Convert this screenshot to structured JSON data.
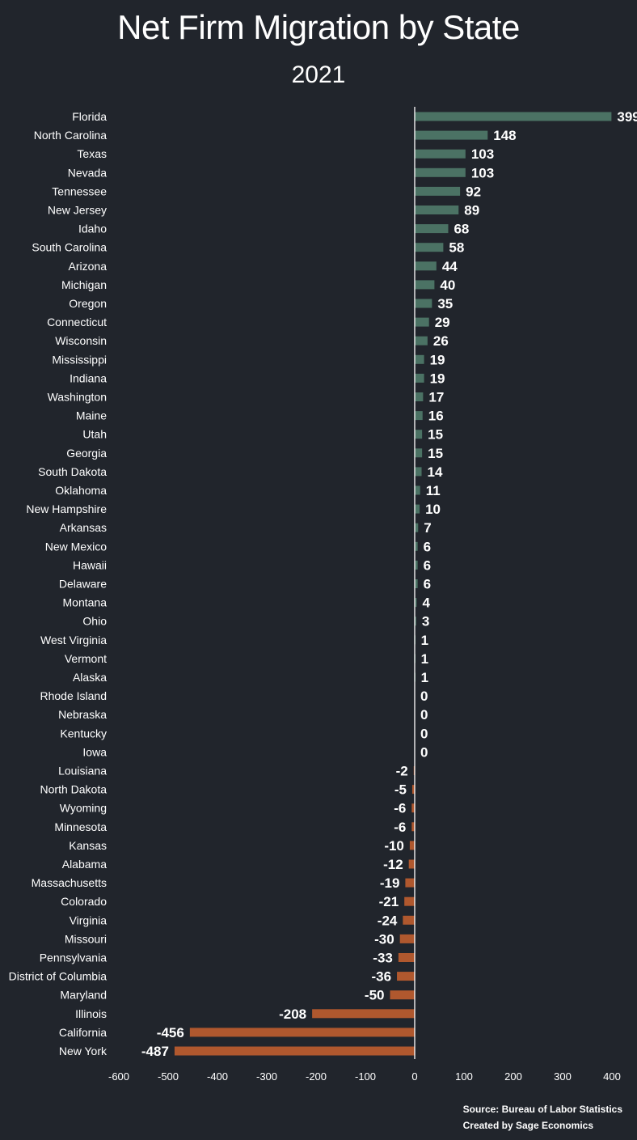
{
  "title": "Net Firm Migration by State",
  "subtitle": "2021",
  "source": "Source: Bureau of Labor Statistics",
  "credit": "Created by Sage Economics",
  "colors": {
    "background": "#21252c",
    "positive": "#4b7264",
    "negative": "#b0582e",
    "axis": "#ffffff",
    "text": "#ffffff"
  },
  "chart_data": {
    "type": "bar",
    "orientation": "horizontal",
    "title": "Net Firm Migration by State",
    "subtitle": "2021",
    "xlim": [
      -600,
      400
    ],
    "xticks": [
      -600,
      -500,
      -400,
      -300,
      -200,
      -100,
      0,
      100,
      200,
      300,
      400
    ],
    "categories": [
      "Florida",
      "North Carolina",
      "Texas",
      "Nevada",
      "Tennessee",
      "New Jersey",
      "Idaho",
      "South Carolina",
      "Arizona",
      "Michigan",
      "Oregon",
      "Connecticut",
      "Wisconsin",
      "Mississippi",
      "Indiana",
      "Washington",
      "Maine",
      "Utah",
      "Georgia",
      "South Dakota",
      "Oklahoma",
      "New Hampshire",
      "Arkansas",
      "New Mexico",
      "Hawaii",
      "Delaware",
      "Montana",
      "Ohio",
      "West Virginia",
      "Vermont",
      "Alaska",
      "Rhode Island",
      "Nebraska",
      "Kentucky",
      "Iowa",
      "Louisiana",
      "North Dakota",
      "Wyoming",
      "Minnesota",
      "Kansas",
      "Alabama",
      "Massachusetts",
      "Colorado",
      "Virginia",
      "Missouri",
      "Pennsylvania",
      "District of Columbia",
      "Maryland",
      "Illinois",
      "California",
      "New York"
    ],
    "values": [
      399,
      148,
      103,
      103,
      92,
      89,
      68,
      58,
      44,
      40,
      35,
      29,
      26,
      19,
      19,
      17,
      16,
      15,
      15,
      14,
      11,
      10,
      7,
      6,
      6,
      6,
      4,
      3,
      1,
      1,
      1,
      0,
      0,
      0,
      0,
      -2,
      -5,
      -6,
      -6,
      -10,
      -12,
      -19,
      -21,
      -24,
      -30,
      -33,
      -36,
      -50,
      -208,
      -456,
      -487
    ],
    "data_labels": true,
    "grid": false,
    "legend": "none"
  }
}
